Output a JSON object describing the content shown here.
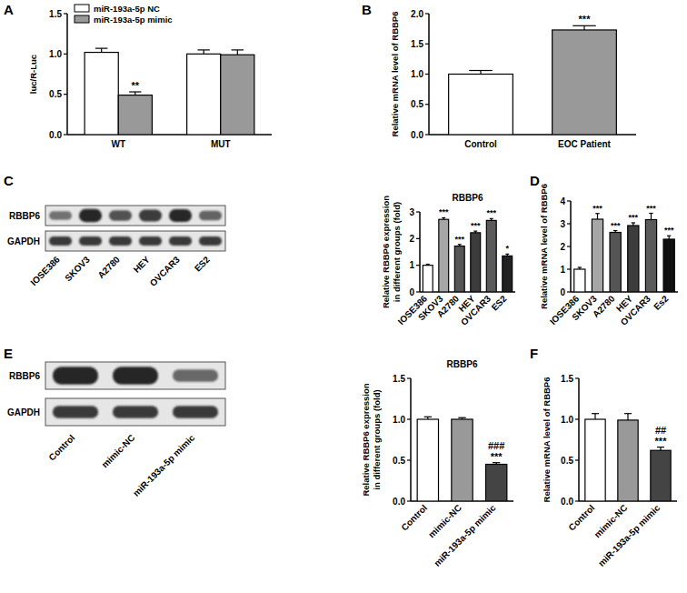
{
  "chart_data": [
    {
      "panel": "A",
      "type": "bar",
      "y_label": "luc/R-Luc",
      "categories": [
        "WT",
        "MUT"
      ],
      "series": [
        {
          "name": "miR-193a-5p NC",
          "color": "#ffffff",
          "values": [
            1.02,
            1.0
          ],
          "errors": [
            0.05,
            0.05
          ],
          "annotations": [
            null,
            null
          ]
        },
        {
          "name": "miR-193a-5p mimic",
          "color": "#999999",
          "values": [
            0.49,
            0.99
          ],
          "errors": [
            0.04,
            0.06
          ],
          "annotations": [
            [
              "**"
            ],
            null
          ]
        }
      ],
      "ylim": [
        0,
        1.5
      ],
      "yticks": [
        {
          "value": 0,
          "label": "0.0"
        },
        {
          "value": 0.5,
          "label": "0.5"
        },
        {
          "value": 1.0,
          "label": "1.0"
        },
        {
          "value": 1.5,
          "label": "1.5"
        }
      ],
      "legend": "upper left"
    },
    {
      "panel": "B",
      "type": "bar",
      "y_label": "Relative mRNA level of RBBP6",
      "categories": [
        "Control",
        "EOC Patient"
      ],
      "values": [
        1.0,
        1.73
      ],
      "errors": [
        0.06,
        0.07
      ],
      "colors": [
        "#ffffff",
        "#999999"
      ],
      "annotations": [
        null,
        [
          "***"
        ]
      ],
      "ylim": [
        0,
        2.0
      ],
      "yticks": [
        {
          "value": 0,
          "label": "0.0"
        },
        {
          "value": 0.5,
          "label": "0.5"
        },
        {
          "value": 1.0,
          "label": "1.0"
        },
        {
          "value": 1.5,
          "label": "1.5"
        },
        {
          "value": 2.0,
          "label": "2.0"
        }
      ]
    },
    {
      "panel": "C",
      "type": "bar",
      "title": "RBBP6",
      "blot": {
        "rows": [
          "RBBP6",
          "GAPDH"
        ]
      },
      "y_label": [
        "Relative RBBP6 expression",
        "in different groups (fold)"
      ],
      "categories": [
        "IOSE386",
        "SKOV3",
        "A2780",
        "HEY",
        "OVCAR3",
        "ES2"
      ],
      "values": [
        1.0,
        2.72,
        1.72,
        2.22,
        2.68,
        1.35
      ],
      "errors": [
        0.04,
        0.06,
        0.06,
        0.06,
        0.07,
        0.07
      ],
      "colors": [
        "#ffffff",
        "#a6a6a6",
        "#555555",
        "#3c3c3c",
        "#5a5a5a",
        "#222222"
      ],
      "annotations": [
        null,
        [
          "***"
        ],
        [
          "***"
        ],
        [
          "***"
        ],
        [
          "***"
        ],
        [
          "*"
        ]
      ],
      "ylim": [
        0,
        3
      ],
      "yticks": [
        0,
        1,
        2,
        3
      ]
    },
    {
      "panel": "D",
      "type": "bar",
      "y_label": "Relative mRNA level of RBBP6",
      "categories": [
        "IOSE386",
        "SKOV3",
        "A2780",
        "HEY",
        "OVCAR3",
        "Es2"
      ],
      "values": [
        1.0,
        3.2,
        2.62,
        2.92,
        3.18,
        2.32
      ],
      "errors": [
        0.08,
        0.25,
        0.08,
        0.12,
        0.28,
        0.15
      ],
      "colors": [
        "#ffffff",
        "#a6a6a6",
        "#555555",
        "#3c3c3c",
        "#5a5a5a",
        "#111111"
      ],
      "annotations": [
        null,
        [
          "***"
        ],
        [
          "***"
        ],
        [
          "***"
        ],
        [
          "***"
        ],
        [
          "***"
        ]
      ],
      "ylim": [
        0,
        4
      ],
      "yticks": [
        0,
        1,
        2,
        3,
        4
      ]
    },
    {
      "panel": "E",
      "type": "bar",
      "title": "RBBP6",
      "blot": {
        "rows": [
          "RBBP6",
          "GAPDH"
        ]
      },
      "y_label": [
        "Relative RBBP6 expression",
        "in different groups (fold)"
      ],
      "categories": [
        "Control",
        "mimic-NC",
        "miR-193a-5p mimic"
      ],
      "values": [
        1.0,
        1.0,
        0.45
      ],
      "errors": [
        0.03,
        0.02,
        0.02
      ],
      "colors": [
        "#ffffff",
        "#999999",
        "#444444"
      ],
      "annotations": [
        null,
        null,
        [
          "###",
          "***"
        ]
      ],
      "ylim": [
        0,
        1.5
      ],
      "yticks": [
        {
          "value": 0,
          "label": "0.0"
        },
        {
          "value": 0.5,
          "label": "0.5"
        },
        {
          "value": 1.0,
          "label": "1.0"
        },
        {
          "value": 1.5,
          "label": "1.5"
        }
      ]
    },
    {
      "panel": "F",
      "type": "bar",
      "y_label": "Relative mRNA level of RBBP6",
      "categories": [
        "Control",
        "mimic-NC",
        "miR-193a-5p mimic"
      ],
      "values": [
        1.0,
        0.99,
        0.62
      ],
      "errors": [
        0.07,
        0.08,
        0.04
      ],
      "colors": [
        "#ffffff",
        "#999999",
        "#444444"
      ],
      "annotations": [
        null,
        null,
        [
          "##",
          "***"
        ]
      ],
      "ylim": [
        0,
        1.5
      ],
      "yticks": [
        {
          "value": 0,
          "label": "0.0"
        },
        {
          "value": 0.5,
          "label": "0.5"
        },
        {
          "value": 1.0,
          "label": "1.0"
        },
        {
          "value": 1.5,
          "label": "1.5"
        }
      ]
    }
  ]
}
